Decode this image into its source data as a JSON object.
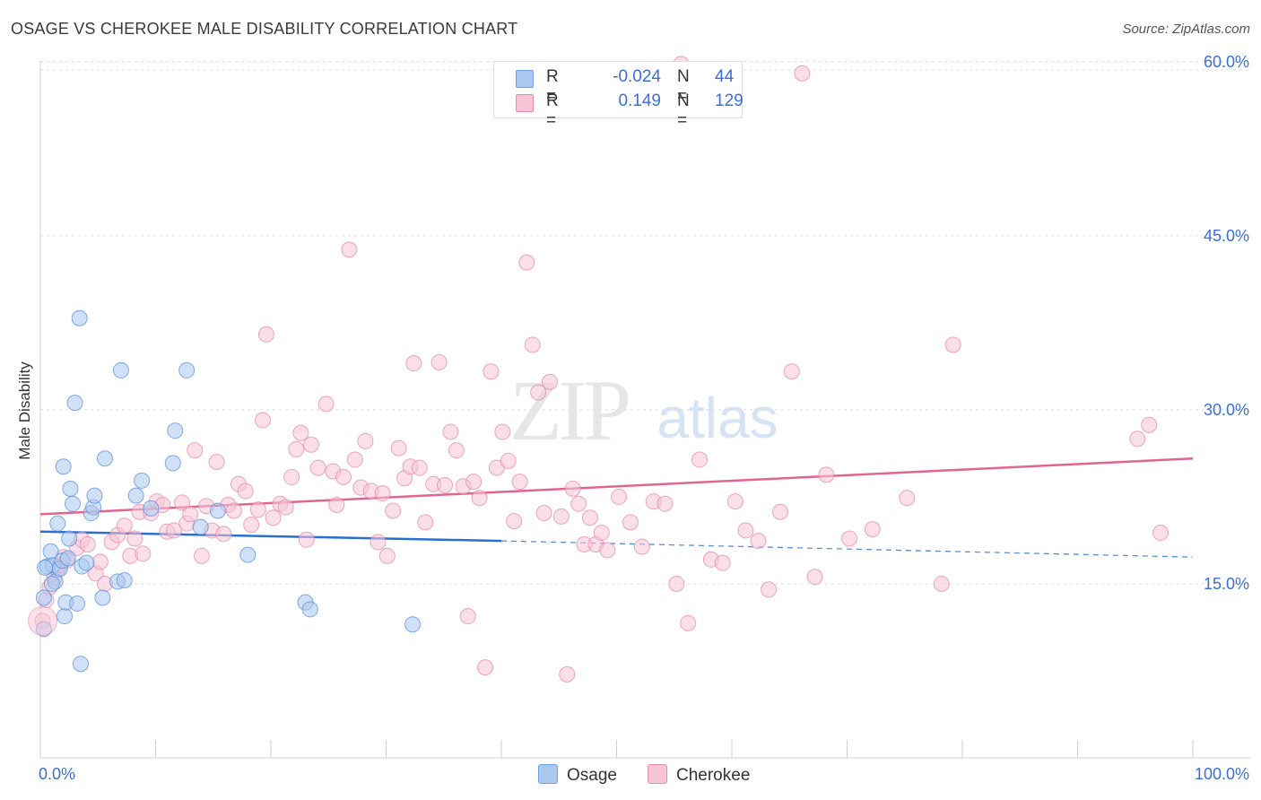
{
  "header": {
    "title": "OSAGE VS CHEROKEE MALE DISABILITY CORRELATION CHART",
    "source": "Source: ZipAtlas.com"
  },
  "watermark": {
    "zip": "ZIP",
    "atlas": "atlas"
  },
  "legend": {
    "rows": [
      {
        "r_label": "R =",
        "r_value": "-0.024",
        "n_label": "N =",
        "n_value": "44",
        "color": "#aac8f0",
        "border": "#6f9fe0"
      },
      {
        "r_label": "R =",
        "r_value": "0.149",
        "n_label": "N =",
        "n_value": "129",
        "color": "#f8c5d6",
        "border": "#e98aab"
      }
    ]
  },
  "bottom_legend": {
    "osage": "Osage",
    "cherokee": "Cherokee"
  },
  "colors": {
    "osage_fill": "#aac8f0",
    "osage_stroke": "#5b8fdb",
    "osage_line": "#2a6fd0",
    "cherokee_fill": "#f8c5d6",
    "cherokee_stroke": "#e58aa8",
    "cherokee_line": "#e2658f",
    "axis_label": "#3a6fd8",
    "grid": "#dcdcdc"
  },
  "chart_data": {
    "type": "scatter",
    "title": "OSAGE VS CHEROKEE MALE DISABILITY CORRELATION CHART",
    "xlabel": "",
    "ylabel": "Male Disability",
    "xlim": [
      0,
      100
    ],
    "ylim": [
      0,
      63
    ],
    "x_tick_labels": [
      "0.0%",
      "100.0%"
    ],
    "y_ticks": [
      15,
      30,
      45,
      60
    ],
    "y_tick_labels": [
      "15.0%",
      "30.0%",
      "45.0%",
      "60.0%"
    ],
    "grid": "horizontal dashed",
    "series": [
      {
        "name": "Osage",
        "points": [
          [
            0.3,
            13.8
          ],
          [
            0.3,
            11.1
          ],
          [
            0.6,
            16.5
          ],
          [
            0.9,
            17.8
          ],
          [
            1.1,
            16.6
          ],
          [
            1.3,
            15.2
          ],
          [
            1.5,
            20.2
          ],
          [
            1.7,
            16.3
          ],
          [
            1.9,
            17.0
          ],
          [
            2.0,
            25.1
          ],
          [
            2.1,
            12.2
          ],
          [
            2.2,
            13.4
          ],
          [
            2.4,
            17.2
          ],
          [
            2.5,
            18.9
          ],
          [
            2.6,
            23.2
          ],
          [
            2.8,
            21.9
          ],
          [
            3.0,
            30.6
          ],
          [
            3.2,
            13.3
          ],
          [
            3.4,
            37.9
          ],
          [
            3.5,
            8.1
          ],
          [
            3.6,
            16.5
          ],
          [
            4.0,
            16.8
          ],
          [
            4.4,
            21.1
          ],
          [
            4.6,
            21.6
          ],
          [
            4.7,
            22.6
          ],
          [
            5.4,
            13.8
          ],
          [
            5.6,
            25.8
          ],
          [
            6.7,
            15.2
          ],
          [
            7.0,
            33.4
          ],
          [
            7.3,
            15.3
          ],
          [
            8.3,
            22.6
          ],
          [
            8.8,
            23.9
          ],
          [
            9.6,
            21.5
          ],
          [
            11.5,
            25.4
          ],
          [
            11.7,
            28.2
          ],
          [
            12.7,
            33.4
          ],
          [
            13.9,
            19.9
          ],
          [
            15.4,
            21.3
          ],
          [
            18.0,
            17.5
          ],
          [
            23.0,
            13.4
          ],
          [
            23.4,
            12.8
          ],
          [
            32.3,
            11.5
          ],
          [
            0.4,
            16.4
          ],
          [
            1.0,
            15.0
          ]
        ],
        "trend": {
          "x0": 0,
          "y0": 19.5,
          "x1": 40,
          "y1": 18.7,
          "dashed_to_x": 100,
          "dashed_to_y": 17.3
        }
      },
      {
        "name": "Cherokee",
        "points": [
          [
            0.2,
            11.8
          ],
          [
            0.5,
            13.6
          ],
          [
            0.8,
            14.7
          ],
          [
            1.2,
            15.5
          ],
          [
            1.5,
            16.2
          ],
          [
            1.7,
            16.6
          ],
          [
            2.0,
            17.3
          ],
          [
            2.3,
            17.0
          ],
          [
            3.2,
            18.1
          ],
          [
            3.6,
            18.8
          ],
          [
            4.1,
            18.4
          ],
          [
            4.8,
            15.9
          ],
          [
            5.2,
            16.9
          ],
          [
            5.6,
            15.0
          ],
          [
            6.2,
            18.6
          ],
          [
            6.7,
            19.2
          ],
          [
            7.3,
            20.0
          ],
          [
            7.8,
            17.4
          ],
          [
            8.2,
            18.9
          ],
          [
            8.6,
            21.2
          ],
          [
            8.9,
            17.6
          ],
          [
            9.6,
            21.1
          ],
          [
            10.1,
            22.1
          ],
          [
            10.6,
            21.8
          ],
          [
            11.0,
            19.5
          ],
          [
            11.6,
            19.6
          ],
          [
            12.3,
            22.0
          ],
          [
            12.7,
            20.2
          ],
          [
            13.0,
            21.0
          ],
          [
            13.4,
            26.5
          ],
          [
            14.0,
            17.4
          ],
          [
            14.4,
            21.7
          ],
          [
            14.9,
            19.6
          ],
          [
            15.3,
            25.5
          ],
          [
            15.9,
            19.3
          ],
          [
            16.3,
            21.8
          ],
          [
            16.8,
            21.3
          ],
          [
            17.2,
            23.6
          ],
          [
            17.8,
            23.0
          ],
          [
            18.3,
            20.1
          ],
          [
            18.9,
            21.4
          ],
          [
            19.3,
            29.1
          ],
          [
            19.6,
            36.5
          ],
          [
            20.2,
            20.7
          ],
          [
            20.8,
            21.9
          ],
          [
            21.3,
            21.6
          ],
          [
            21.8,
            24.2
          ],
          [
            22.2,
            26.6
          ],
          [
            22.6,
            28.0
          ],
          [
            23.1,
            18.8
          ],
          [
            23.5,
            27.0
          ],
          [
            24.1,
            25.0
          ],
          [
            24.8,
            30.5
          ],
          [
            25.4,
            24.7
          ],
          [
            25.7,
            21.8
          ],
          [
            26.3,
            24.2
          ],
          [
            26.8,
            43.8
          ],
          [
            27.3,
            25.7
          ],
          [
            27.8,
            23.3
          ],
          [
            28.2,
            27.3
          ],
          [
            28.7,
            23.0
          ],
          [
            29.3,
            18.6
          ],
          [
            29.7,
            22.8
          ],
          [
            30.1,
            17.4
          ],
          [
            30.6,
            21.3
          ],
          [
            31.1,
            26.7
          ],
          [
            31.6,
            24.1
          ],
          [
            32.1,
            25.1
          ],
          [
            32.4,
            34.0
          ],
          [
            32.9,
            25.0
          ],
          [
            33.4,
            20.3
          ],
          [
            34.1,
            23.6
          ],
          [
            34.6,
            34.1
          ],
          [
            35.1,
            23.5
          ],
          [
            35.6,
            28.1
          ],
          [
            36.1,
            26.5
          ],
          [
            36.7,
            23.4
          ],
          [
            37.1,
            12.2
          ],
          [
            37.6,
            23.8
          ],
          [
            38.1,
            22.4
          ],
          [
            38.6,
            7.8
          ],
          [
            39.1,
            33.3
          ],
          [
            39.6,
            25.0
          ],
          [
            40.1,
            28.1
          ],
          [
            40.6,
            25.6
          ],
          [
            41.1,
            20.4
          ],
          [
            41.6,
            23.8
          ],
          [
            42.2,
            42.7
          ],
          [
            42.7,
            35.6
          ],
          [
            43.2,
            31.5
          ],
          [
            43.7,
            21.1
          ],
          [
            44.2,
            32.4
          ],
          [
            45.2,
            20.8
          ],
          [
            45.7,
            7.2
          ],
          [
            46.2,
            23.2
          ],
          [
            46.7,
            21.9
          ],
          [
            47.2,
            18.4
          ],
          [
            47.7,
            20.7
          ],
          [
            48.2,
            18.4
          ],
          [
            48.7,
            19.4
          ],
          [
            49.2,
            17.9
          ],
          [
            50.2,
            22.5
          ],
          [
            51.2,
            20.3
          ],
          [
            52.2,
            18.2
          ],
          [
            53.2,
            22.1
          ],
          [
            54.2,
            21.9
          ],
          [
            55.2,
            15.0
          ],
          [
            56.2,
            11.6
          ],
          [
            57.2,
            25.7
          ],
          [
            58.2,
            17.1
          ],
          [
            59.2,
            16.8
          ],
          [
            60.3,
            22.1
          ],
          [
            61.2,
            19.6
          ],
          [
            62.3,
            18.7
          ],
          [
            63.2,
            14.5
          ],
          [
            64.2,
            21.2
          ],
          [
            65.2,
            33.3
          ],
          [
            67.2,
            15.6
          ],
          [
            68.2,
            24.4
          ],
          [
            70.2,
            18.9
          ],
          [
            72.2,
            19.7
          ],
          [
            75.2,
            22.4
          ],
          [
            78.2,
            15.0
          ],
          [
            79.2,
            35.6
          ],
          [
            95.2,
            27.5
          ],
          [
            96.2,
            28.7
          ],
          [
            97.2,
            19.4
          ],
          [
            66.1,
            59.0
          ],
          [
            55.6,
            59.8
          ]
        ],
        "trend": {
          "x0": 0,
          "y0": 21.0,
          "x1": 100,
          "y1": 25.8
        }
      }
    ]
  }
}
